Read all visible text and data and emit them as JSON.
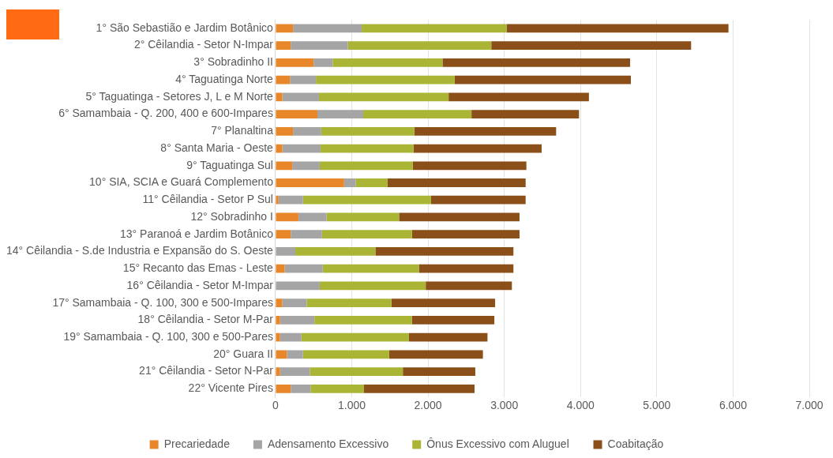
{
  "chart_data": {
    "type": "bar",
    "orientation": "horizontal",
    "stacked": true,
    "categories": [
      "1° São Sebastião e Jardim Botânico",
      "2° Cêilandia - Setor N-Impar",
      "3° Sobradinho II",
      "4° Taguatinga Norte",
      "5° Taguatinga - Setores J, L e M Norte",
      "6° Samambaia - Q. 200, 400 e 600-Impares",
      "7° Planaltina",
      "8° Santa Maria - Oeste",
      "9° Taguatinga Sul",
      "10° SIA, SCIA e Guará Complemento",
      "11° Cêilandia - Setor P Sul",
      "12° Sobradinho I",
      "13° Paranoá e Jardim Botânico",
      "14° Cêilandia - S.de Industria e Expansão do S. Oeste",
      "15° Recanto das Emas - Leste",
      "16° Cêilandia - Setor M-Impar",
      "17° Samambaia - Q. 100, 300 e 500-Impares",
      "18° Cêilandia - Setor M-Par",
      "19° Samambaia - Q. 100, 300 e 500-Pares",
      "20° Guara II",
      "21° Cêilandia - Setor N-Par",
      "22° Vicente Pires"
    ],
    "series": [
      {
        "name": "Precariedade",
        "color": "#e8862a",
        "values": [
          230,
          200,
          500,
          190,
          90,
          550,
          230,
          90,
          220,
          900,
          40,
          300,
          200,
          0,
          120,
          0,
          90,
          60,
          60,
          150,
          60,
          200
        ]
      },
      {
        "name": "Adensamento Excessivo",
        "color": "#a5a5a5",
        "values": [
          900,
          750,
          250,
          340,
          480,
          600,
          370,
          500,
          360,
          150,
          320,
          370,
          410,
          260,
          500,
          580,
          320,
          450,
          280,
          210,
          390,
          260
        ]
      },
      {
        "name": "Ônus Excessivo com Aluguel",
        "color": "#aab535",
        "values": [
          1900,
          1880,
          1440,
          1820,
          1700,
          1420,
          1220,
          1220,
          1220,
          420,
          1680,
          950,
          1180,
          1050,
          1260,
          1390,
          1110,
          1280,
          1410,
          1130,
          1220,
          700
        ]
      },
      {
        "name": "Coabitação",
        "color": "#8b4f1a",
        "values": [
          2910,
          2620,
          2460,
          2310,
          1840,
          1410,
          1860,
          1680,
          1490,
          1810,
          1240,
          1580,
          1410,
          1810,
          1240,
          1130,
          1360,
          1080,
          1030,
          1230,
          950,
          1450
        ]
      }
    ],
    "xlim": [
      0,
      7000
    ],
    "xticks": [
      0,
      {
        "value": 1000,
        "label": "1.000"
      },
      {
        "value": 2000,
        "label": "2.000"
      },
      {
        "value": 3000,
        "label": "3.000"
      },
      {
        "value": 4000,
        "label": "4.000"
      },
      {
        "value": 5000,
        "label": "5.000"
      },
      {
        "value": 6000,
        "label": "6.000"
      },
      {
        "value": 7000,
        "label": "7.000"
      }
    ],
    "grid": "x",
    "legend": "bottom"
  }
}
